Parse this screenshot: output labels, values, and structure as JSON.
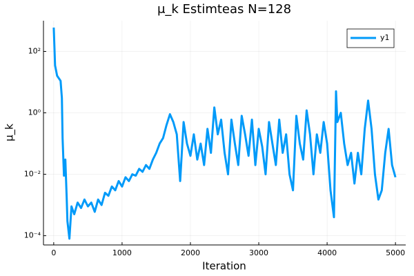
{
  "chart_data": {
    "type": "line",
    "title": "μ_k Estimteas N=128",
    "xlabel": "Iteration",
    "ylabel": "μ_k",
    "log_y": true,
    "grid": true,
    "legend": "top-right",
    "xlim": [
      -150,
      5150
    ],
    "xticks": [
      0,
      1000,
      2000,
      3000,
      4000,
      5000
    ],
    "ylim": [
      5e-05,
      1000
    ],
    "yticks": [
      {
        "value": 0.0001,
        "label": "10⁻⁴"
      },
      {
        "value": 0.01,
        "label": "10⁻²"
      },
      {
        "value": 1,
        "label": "10⁰"
      },
      {
        "value": 100,
        "label": "10²"
      }
    ],
    "x": [
      0,
      20,
      50,
      100,
      120,
      130,
      150,
      170,
      190,
      200,
      230,
      260,
      300,
      350,
      400,
      450,
      500,
      550,
      600,
      650,
      700,
      750,
      800,
      850,
      900,
      950,
      1000,
      1050,
      1100,
      1150,
      1200,
      1250,
      1300,
      1350,
      1400,
      1450,
      1500,
      1550,
      1600,
      1650,
      1700,
      1750,
      1800,
      1850,
      1900,
      1950,
      2000,
      2050,
      2100,
      2150,
      2200,
      2250,
      2300,
      2350,
      2400,
      2450,
      2500,
      2550,
      2600,
      2650,
      2700,
      2750,
      2800,
      2850,
      2900,
      2950,
      3000,
      3050,
      3100,
      3150,
      3200,
      3250,
      3300,
      3350,
      3400,
      3450,
      3500,
      3550,
      3600,
      3650,
      3700,
      3750,
      3800,
      3850,
      3900,
      3950,
      4000,
      4050,
      4100,
      4130,
      4150,
      4200,
      4250,
      4300,
      4350,
      4400,
      4450,
      4500,
      4550,
      4600,
      4650,
      4700,
      4750,
      4800,
      4850,
      4900,
      4950,
      5000
    ],
    "series": [
      {
        "name": "y1",
        "color": "#009af9",
        "values": [
          600,
          35,
          16,
          11,
          3,
          0.15,
          0.009,
          0.03,
          0.0016,
          0.0003,
          8e-05,
          0.0009,
          0.0005,
          0.0012,
          0.0008,
          0.0015,
          0.0009,
          0.0012,
          0.0006,
          0.0015,
          0.001,
          0.0025,
          0.002,
          0.004,
          0.003,
          0.006,
          0.004,
          0.008,
          0.006,
          0.01,
          0.009,
          0.015,
          0.012,
          0.02,
          0.015,
          0.03,
          0.05,
          0.1,
          0.15,
          0.4,
          0.9,
          0.5,
          0.2,
          0.006,
          0.5,
          0.1,
          0.04,
          0.2,
          0.03,
          0.1,
          0.02,
          0.3,
          0.05,
          1.5,
          0.2,
          0.6,
          0.05,
          0.01,
          0.6,
          0.1,
          0.02,
          0.8,
          0.2,
          0.04,
          0.6,
          0.02,
          0.3,
          0.08,
          0.01,
          0.5,
          0.1,
          0.02,
          0.6,
          0.05,
          0.2,
          0.01,
          0.003,
          0.8,
          0.1,
          0.03,
          1.2,
          0.2,
          0.01,
          0.2,
          0.05,
          0.5,
          0.1,
          0.003,
          0.0004,
          5,
          0.5,
          1,
          0.1,
          0.02,
          0.05,
          0.005,
          0.05,
          0.01,
          0.3,
          2.5,
          0.3,
          0.01,
          0.0015,
          0.003,
          0.05,
          0.3,
          0.02,
          0.008
        ]
      }
    ]
  }
}
